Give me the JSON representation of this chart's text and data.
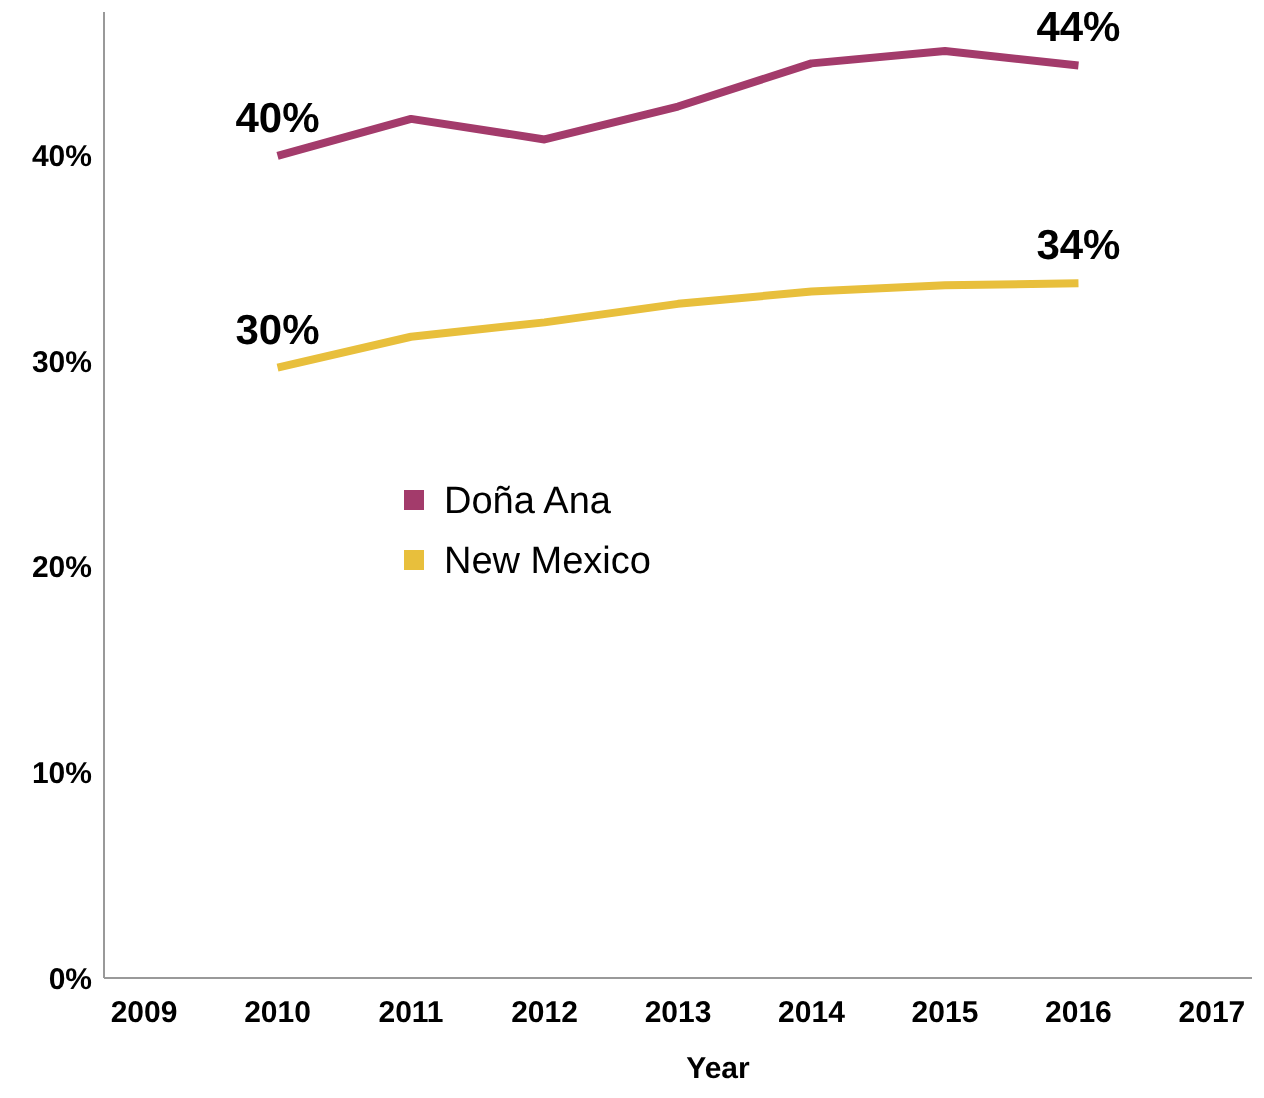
{
  "chart_data": {
    "type": "line",
    "xlabel": "Year",
    "x": [
      2010,
      2011,
      2012,
      2013,
      2014,
      2015,
      2016
    ],
    "series": [
      {
        "name": "Doña Ana",
        "color": "#a33b6b",
        "values": [
          40.0,
          41.8,
          40.8,
          42.4,
          44.5,
          45.1,
          44.4
        ],
        "value_labels": [
          "40%",
          null,
          null,
          null,
          null,
          null,
          "44%"
        ]
      },
      {
        "name": "New Mexico",
        "color": "#e8bf3c",
        "values": [
          29.7,
          31.2,
          31.9,
          32.8,
          33.4,
          33.7,
          33.8
        ],
        "value_labels": [
          "30%",
          null,
          null,
          null,
          null,
          null,
          "34%"
        ]
      }
    ],
    "xlim": [
      2008.7,
      2017.3
    ],
    "xticks": [
      2009,
      2010,
      2011,
      2012,
      2013,
      2014,
      2015,
      2016,
      2017
    ],
    "ylim": [
      0,
      47
    ],
    "yticks": [
      {
        "value": 0,
        "label": "0%"
      },
      {
        "value": 10,
        "label": "10%"
      },
      {
        "value": 20,
        "label": "20%"
      },
      {
        "value": 30,
        "label": "30%"
      },
      {
        "value": 40,
        "label": "40%"
      }
    ],
    "grid": false,
    "legend": "left",
    "marker": "none",
    "line_style": "solid"
  }
}
